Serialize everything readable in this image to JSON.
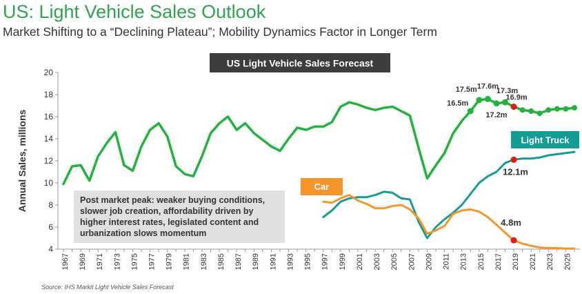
{
  "header": {
    "title": "US: Light Vehicle Sales Outlook",
    "subtitle": "Market Shifting to a “Declining Plateau”; Mobility Dynamics Factor in Longer Term"
  },
  "footer": {
    "source": "Source:  IHS Markit Light Vehicle Sales Forecast"
  },
  "colors": {
    "total": "#22b33e",
    "truck": "#159c94",
    "car": "#f6962a",
    "marker": "#e01b1b",
    "title_box": "#3d3d3d",
    "note_box": "#e0e0e0"
  },
  "chart_data": {
    "type": "line",
    "title": "US Light Vehicle Sales Forecast",
    "ylabel": "Annual Sales, millions",
    "xlabel": "",
    "ylim": [
      4,
      20
    ],
    "yticks": [
      4,
      6,
      8,
      10,
      12,
      14,
      16,
      18,
      20
    ],
    "xlim": [
      1967,
      2026
    ],
    "xticks": [
      1967,
      1969,
      1971,
      1973,
      1975,
      1977,
      1979,
      1981,
      1983,
      1985,
      1987,
      1989,
      1991,
      1993,
      1995,
      1997,
      1999,
      2001,
      2003,
      2005,
      2007,
      2009,
      2011,
      2013,
      2015,
      2017,
      2019,
      2021,
      2023,
      2025
    ],
    "grid": false,
    "series": [
      {
        "name": "",
        "x": [
          1967,
          1968,
          1969,
          1970,
          1971,
          1972,
          1973,
          1974,
          1975,
          1976,
          1977,
          1978,
          1979,
          1980,
          1981,
          1982,
          1983,
          1984,
          1985,
          1986,
          1987,
          1988,
          1989,
          1990,
          1991,
          1992,
          1993,
          1994,
          1995,
          1996,
          1997,
          1998,
          1999,
          2000,
          2001,
          2002,
          2003,
          2004,
          2005,
          2006,
          2007,
          2008,
          2009,
          2010,
          2011,
          2012,
          2013,
          2014,
          2015,
          2016,
          2017,
          2018,
          2019,
          2020,
          2021,
          2022,
          2023,
          2024,
          2025,
          2026
        ],
        "values": [
          9.9,
          11.5,
          11.6,
          10.2,
          12.4,
          13.6,
          14.6,
          11.6,
          11.1,
          13.3,
          14.8,
          15.4,
          14.2,
          11.5,
          10.8,
          10.6,
          12.4,
          14.5,
          15.4,
          16.0,
          14.8,
          15.4,
          14.5,
          13.9,
          13.3,
          12.9,
          14.0,
          15.0,
          14.8,
          15.1,
          15.1,
          15.5,
          16.9,
          17.3,
          17.1,
          16.8,
          16.6,
          16.8,
          16.9,
          16.5,
          16.1,
          13.2,
          10.4,
          11.6,
          12.7,
          14.5,
          15.6,
          16.5,
          17.5,
          17.6,
          17.2,
          17.3,
          16.9,
          16.6,
          16.5,
          16.3,
          16.6,
          16.7,
          16.7,
          16.8
        ]
      },
      {
        "name": "Light Truck",
        "x": [
          1997,
          1998,
          1999,
          2000,
          2001,
          2002,
          2003,
          2004,
          2005,
          2006,
          2007,
          2008,
          2009,
          2010,
          2011,
          2012,
          2013,
          2014,
          2015,
          2016,
          2017,
          2018,
          2019,
          2020,
          2021,
          2022,
          2023,
          2024,
          2025,
          2026
        ],
        "values": [
          6.9,
          7.5,
          8.3,
          8.6,
          8.7,
          8.7,
          8.9,
          9.2,
          9.1,
          8.6,
          8.5,
          6.5,
          5.0,
          6.0,
          6.7,
          7.3,
          8.0,
          9.0,
          10.0,
          10.6,
          11.0,
          11.8,
          12.1,
          12.2,
          12.2,
          12.3,
          12.5,
          12.6,
          12.7,
          12.8
        ]
      },
      {
        "name": "Car",
        "x": [
          1997,
          1998,
          1999,
          2000,
          2001,
          2002,
          2003,
          2004,
          2005,
          2006,
          2007,
          2008,
          2009,
          2010,
          2011,
          2012,
          2013,
          2014,
          2015,
          2016,
          2017,
          2018,
          2019,
          2020,
          2021,
          2022,
          2023,
          2024,
          2025,
          2026
        ],
        "values": [
          8.3,
          8.2,
          8.6,
          8.9,
          8.4,
          8.1,
          7.7,
          7.7,
          7.9,
          8.0,
          7.6,
          6.8,
          5.4,
          5.7,
          6.1,
          7.2,
          7.5,
          7.6,
          7.4,
          6.9,
          6.2,
          5.5,
          4.8,
          4.5,
          4.3,
          4.15,
          4.1,
          4.1,
          4.05,
          4.05
        ]
      }
    ],
    "forecast_start": 2019,
    "markers": [
      {
        "series": 0,
        "x": 2014,
        "label": "16.5m"
      },
      {
        "series": 0,
        "x": 2015,
        "label": "17.5m"
      },
      {
        "series": 0,
        "x": 2016,
        "label": "17.6m"
      },
      {
        "series": 0,
        "x": 2017,
        "label": "17.2m"
      },
      {
        "series": 0,
        "x": 2018,
        "label": "17.3m"
      },
      {
        "series": 0,
        "x": 2019,
        "label": "16.9m",
        "highlight": true
      },
      {
        "series": 1,
        "x": 2019,
        "label": "12.1m",
        "highlight": true
      },
      {
        "series": 2,
        "x": 2019,
        "label": "4.8m",
        "highlight": true
      }
    ],
    "series_labels": [
      {
        "series": 1,
        "text": "Light Truck"
      },
      {
        "series": 2,
        "text": "Car"
      }
    ],
    "annotation": "Post market peak: weaker buying conditions, slower job creation, affordability driven by higher interest rates, legislated content and urbanization slows momentum"
  }
}
